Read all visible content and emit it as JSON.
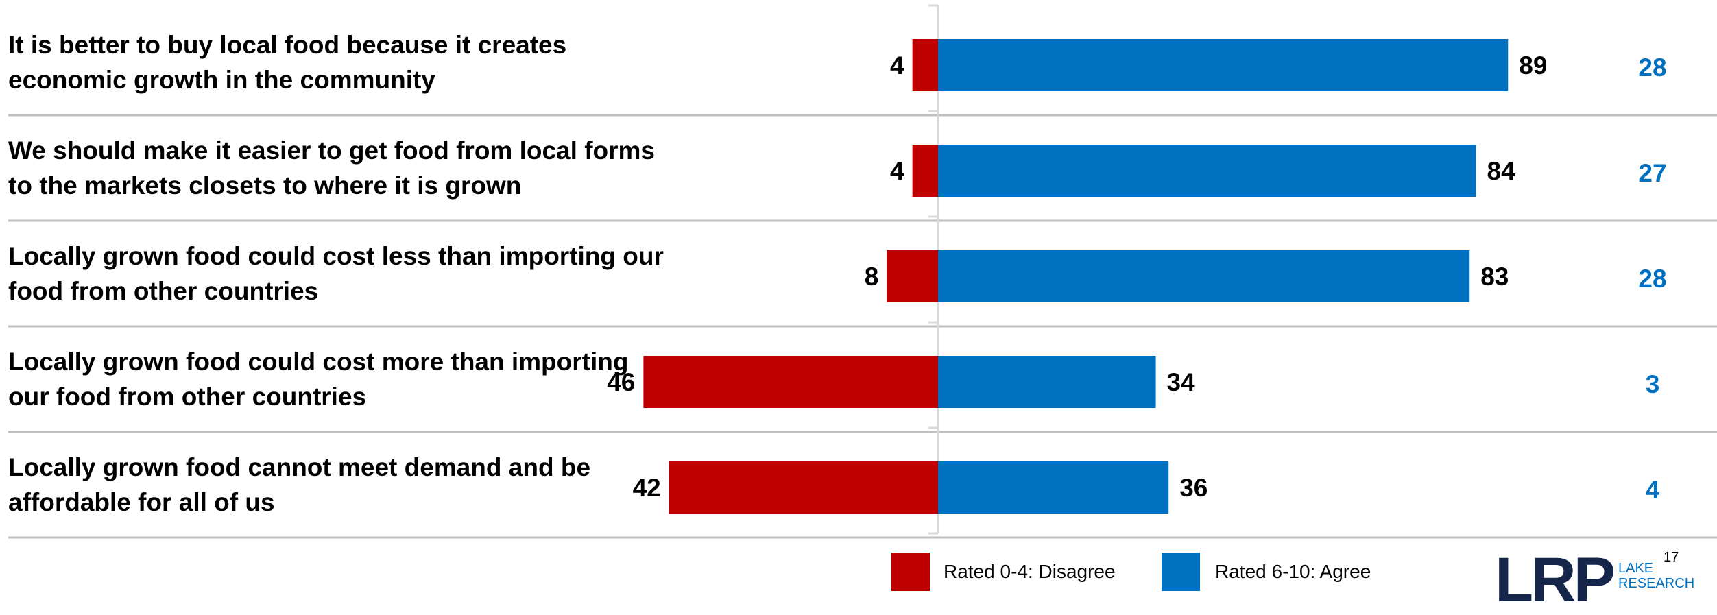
{
  "chart_data": {
    "type": "bar",
    "orientation": "horizontal",
    "stacking": "diverging",
    "categories": [
      "It is better to buy local food because it creates economic growth in the community",
      "We should make it easier to get food from local forms to the markets closets to where it is grown",
      "Locally grown food could cost less than importing our food from other countries",
      "Locally grown food could cost more than importing our food from other countries",
      "Locally grown food cannot meet demand and be affordable for all of us"
    ],
    "series": [
      {
        "name": "Rated 0-4: Disagree",
        "values": [
          4,
          4,
          8,
          46,
          42
        ],
        "color": "#c00000"
      },
      {
        "name": "Rated 6-10: Agree",
        "values": [
          89,
          84,
          83,
          34,
          36
        ],
        "color": "#0070c0"
      }
    ],
    "right_column_values": [
      "28",
      "27",
      "28",
      "3",
      "4"
    ],
    "right_column_color": "#0070c0",
    "legend_position": "bottom",
    "grid": false
  },
  "statements": [
    [
      "It is better to buy local food because it creates",
      "economic growth in the community"
    ],
    [
      "We should make it easier to get food from local forms",
      "to the markets closets to where it is grown"
    ],
    [
      "Locally grown food could cost less than importing our",
      "food from other countries"
    ],
    [
      "Locally grown food could cost more than importing",
      "our food from other countries"
    ],
    [
      "Locally grown food cannot meet demand and be",
      "affordable for all of us"
    ]
  ],
  "legend": {
    "disagree_label": "Rated 0-4: Disagree",
    "agree_label": "Rated 6-10: Agree"
  },
  "logo": {
    "mark": "LRP",
    "text_line1": "LAKE",
    "text_line2": "RESEARCH"
  },
  "page_number": "17",
  "colors": {
    "disagree": "#c00000",
    "agree": "#0070c0",
    "divider": "#bfbfbf"
  }
}
